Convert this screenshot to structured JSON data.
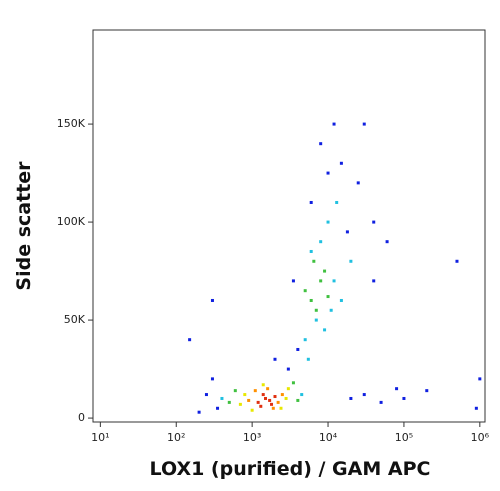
{
  "chart_data": {
    "type": "scatter",
    "xlabel": "LOX1 (purified) / GAM APC",
    "ylabel": "Side scatter",
    "xscale": "log",
    "xlim": [
      8,
      1170000
    ],
    "ylim": [
      -2000,
      198000
    ],
    "xticks": [
      {
        "value": 10,
        "label": "10¹"
      },
      {
        "value": 100,
        "label": "10²"
      },
      {
        "value": 1000,
        "label": "10³"
      },
      {
        "value": 10000,
        "label": "10⁴"
      },
      {
        "value": 100000,
        "label": "10⁵"
      },
      {
        "value": 1000000,
        "label": "10⁶"
      }
    ],
    "yticks": [
      0,
      {
        "value": 50000,
        "label": "50K"
      },
      {
        "value": 100000,
        "label": "100K"
      },
      {
        "value": 150000,
        "label": "150K"
      }
    ],
    "series": [
      {
        "color": "#1020e0",
        "x": [
          200,
          250,
          300,
          350,
          3000,
          4000,
          20000,
          30000,
          50000,
          80000,
          100000,
          200000,
          25000,
          15000,
          30000,
          40000,
          8000,
          6000,
          12000,
          10000,
          18000,
          3500,
          2000,
          150,
          500000,
          900000,
          1000000,
          300,
          40000,
          60000
        ],
        "values": [
          3000,
          12000,
          20000,
          5000,
          25000,
          35000,
          10000,
          12000,
          8000,
          15000,
          10000,
          14000,
          120000,
          130000,
          150000,
          100000,
          140000,
          110000,
          150000,
          125000,
          95000,
          70000,
          30000,
          40000,
          80000,
          5000,
          20000,
          60000,
          70000,
          90000
        ]
      },
      {
        "color": "#20c0e0",
        "x": [
          400,
          4500,
          5000,
          7000,
          9000,
          12000,
          15000,
          8000,
          6000,
          10000,
          20000,
          13000,
          11000,
          5500
        ],
        "values": [
          10000,
          12000,
          40000,
          50000,
          45000,
          70000,
          60000,
          90000,
          85000,
          100000,
          80000,
          110000,
          55000,
          30000
        ]
      },
      {
        "color": "#40c040",
        "x": [
          500,
          600,
          3500,
          4000,
          6000,
          8000,
          7000,
          5000,
          9000,
          10000,
          6500
        ],
        "values": [
          8000,
          14000,
          18000,
          9000,
          60000,
          70000,
          55000,
          65000,
          75000,
          62000,
          80000
        ]
      },
      {
        "color": "#e8e800",
        "x": [
          700,
          2800,
          1000,
          3000,
          1400,
          2400,
          800
        ],
        "values": [
          7000,
          10000,
          4000,
          15000,
          17000,
          5000,
          12000
        ]
      },
      {
        "color": "#ff9000",
        "x": [
          900,
          2200,
          1100,
          2500,
          1600,
          1900
        ],
        "values": [
          9000,
          8000,
          14000,
          12000,
          15000,
          5000
        ]
      },
      {
        "color": "#e03010",
        "x": [
          1200,
          1500,
          1800,
          1400,
          1700,
          2000,
          1300
        ],
        "values": [
          8000,
          10000,
          7000,
          12000,
          9000,
          11000,
          6000
        ]
      }
    ]
  }
}
